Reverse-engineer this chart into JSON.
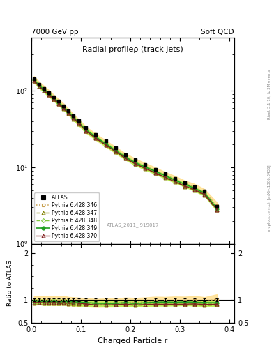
{
  "title": "Radial profileρ (track jets)",
  "top_left_label": "7000 GeV pp",
  "top_right_label": "Soft QCD",
  "right_label_main": "Rivet 3.1.10, ≥ 3M events",
  "right_label_sub": "mcplots.cern.ch [arXiv:1306.3436]",
  "watermark": "ATLAS_2011_I919017",
  "xlabel": "Charged Particle r",
  "ylabel_ratio": "Ratio to ATLAS",
  "x_data": [
    0.005,
    0.015,
    0.025,
    0.035,
    0.045,
    0.055,
    0.065,
    0.075,
    0.085,
    0.095,
    0.11,
    0.13,
    0.15,
    0.17,
    0.19,
    0.21,
    0.23,
    0.25,
    0.27,
    0.29,
    0.31,
    0.33,
    0.35,
    0.375
  ],
  "atlas_y": [
    145,
    122,
    108,
    95,
    83,
    73,
    63,
    55,
    47,
    41,
    33,
    27,
    22,
    18,
    14.5,
    12.5,
    10.8,
    9.4,
    8.2,
    7.2,
    6.3,
    5.6,
    4.9,
    3.1
  ],
  "py346_y": [
    142,
    120,
    106,
    93,
    81,
    71,
    62,
    53,
    45,
    39,
    31,
    25,
    20.5,
    16.8,
    13.8,
    11.8,
    10.3,
    9.1,
    7.9,
    7.0,
    6.1,
    5.5,
    4.7,
    3.15
  ],
  "py347_y": [
    134,
    114,
    100,
    88,
    77,
    67,
    58,
    50,
    43,
    37,
    30,
    24,
    19.5,
    16.0,
    13.0,
    11.0,
    9.6,
    8.4,
    7.3,
    6.4,
    5.6,
    5.0,
    4.3,
    2.75
  ],
  "py348_y": [
    138,
    117,
    102,
    90,
    79,
    69,
    60,
    52,
    44,
    38,
    30.5,
    24.5,
    20.0,
    16.4,
    13.4,
    11.3,
    9.9,
    8.7,
    7.6,
    6.7,
    5.9,
    5.2,
    4.5,
    2.85
  ],
  "py349_y": [
    140,
    119,
    104,
    92,
    80,
    70,
    61,
    53,
    45,
    39,
    31,
    25,
    20.3,
    16.6,
    13.6,
    11.5,
    10.1,
    8.9,
    7.8,
    6.8,
    6.0,
    5.3,
    4.6,
    2.9
  ],
  "py370_y": [
    136,
    115,
    101,
    89,
    78,
    68,
    59,
    51,
    44,
    38,
    30,
    24,
    19.6,
    16.1,
    13.1,
    11.1,
    9.7,
    8.5,
    7.4,
    6.5,
    5.7,
    5.1,
    4.4,
    2.8
  ],
  "atlas_color": "#000000",
  "py346_color": "#c8a050",
  "py347_color": "#808000",
  "py348_color": "#80c840",
  "py349_color": "#20a020",
  "py370_color": "#802020",
  "band346_color": "#ffe090",
  "band348_color": "#b8f050",
  "ylim_main": [
    1,
    500
  ],
  "ylim_ratio": [
    0.5,
    2.2
  ],
  "xlim": [
    0.0,
    0.41
  ],
  "ratio_yticks": [
    0.5,
    1.0,
    2.0
  ],
  "ratio_yticklabels": [
    "0.5",
    "1",
    "2"
  ]
}
